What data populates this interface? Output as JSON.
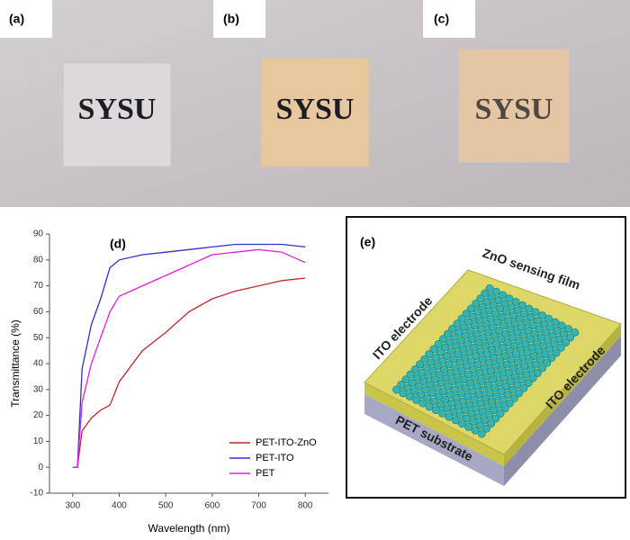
{
  "photos": [
    {
      "label": "(a)",
      "text": "SYSU"
    },
    {
      "label": "(b)",
      "text": "SYSU"
    },
    {
      "label": "(c)",
      "text": "SYSU"
    }
  ],
  "chart_data": {
    "type": "line",
    "label": "(d)",
    "x_label": "Wavelength (nm)",
    "y_label": "Transmittance (%)",
    "x": [
      300,
      310,
      320,
      340,
      360,
      380,
      400,
      450,
      500,
      550,
      600,
      650,
      700,
      750,
      800
    ],
    "series": [
      {
        "name": "PET-ITO-ZnO",
        "color": "#c0272d",
        "values": [
          0,
          0,
          14,
          19,
          22,
          24,
          33,
          45,
          52,
          60,
          65,
          68,
          70,
          72,
          73
        ]
      },
      {
        "name": "PET-ITO",
        "color": "#3030c8",
        "values": [
          0,
          0,
          38,
          55,
          65,
          77,
          80,
          82,
          83,
          84,
          85,
          86,
          86,
          86,
          85
        ]
      },
      {
        "name": "PET",
        "color": "#e020e0",
        "values": [
          0,
          0,
          25,
          40,
          50,
          60,
          66,
          70,
          74,
          78,
          82,
          83,
          84,
          83,
          79
        ]
      }
    ],
    "xlim": [
      250,
      850
    ],
    "ylim": [
      -10,
      90
    ],
    "xticks": [
      300,
      400,
      500,
      600,
      700,
      800
    ],
    "yticks": [
      -10,
      0,
      10,
      20,
      30,
      40,
      50,
      60,
      70,
      80,
      90
    ]
  },
  "diagram": {
    "label": "(e)",
    "film": "ZnO sensing film",
    "electrode_left": "ITO electrode",
    "electrode_right": "ITO electrode",
    "substrate": "PET substrate"
  }
}
